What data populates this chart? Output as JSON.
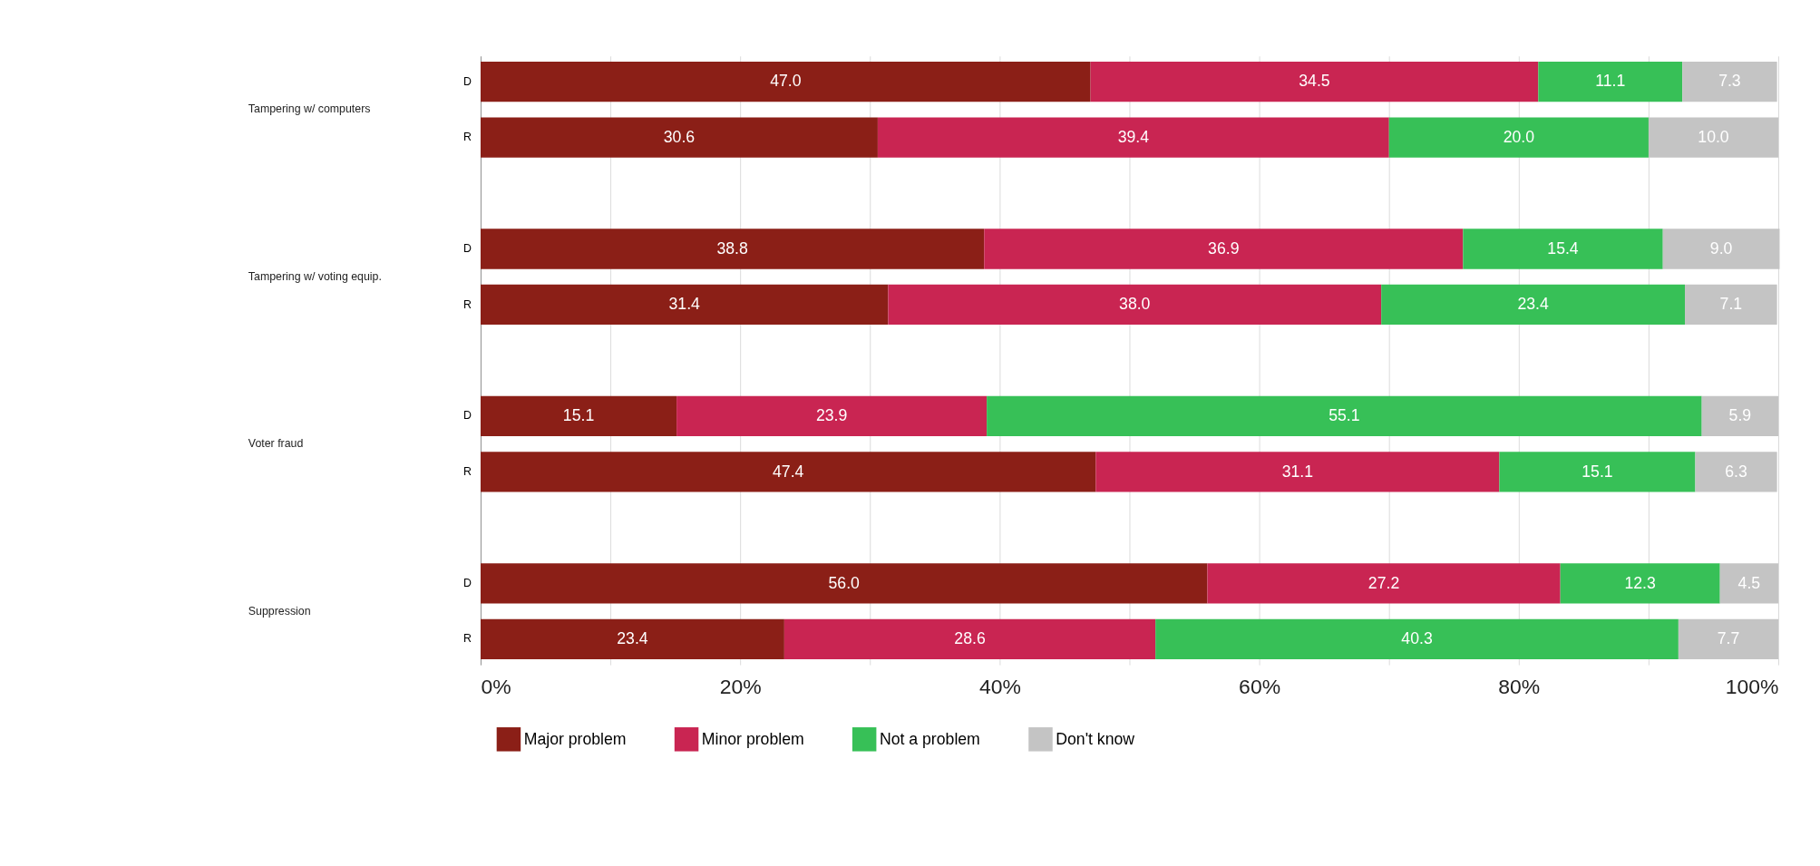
{
  "chart_data": {
    "type": "bar",
    "orientation": "horizontal",
    "stacked": true,
    "grid": true,
    "legend": "bottom",
    "categories": [
      "D",
      "R",
      "D",
      "R",
      "D",
      "R",
      "D",
      "R"
    ],
    "annotations": [
      "Tampering w/ computers",
      "Tampering w/ voting equip.",
      "Voter fraud",
      "Suppression"
    ],
    "xlim": [
      0,
      100
    ],
    "xticks": [
      {
        "value": 0,
        "label": "0%"
      },
      {
        "value": 10,
        "label": null
      },
      {
        "value": 20,
        "label": "20%"
      },
      {
        "value": 30,
        "label": null
      },
      {
        "value": 40,
        "label": "40%"
      },
      {
        "value": 50,
        "label": null
      },
      {
        "value": 60,
        "label": "60%"
      },
      {
        "value": 70,
        "label": null
      },
      {
        "value": 80,
        "label": "80%"
      },
      {
        "value": 90,
        "label": null
      },
      {
        "value": 100,
        "label": "100%"
      }
    ],
    "series": [
      {
        "name": "Major problem",
        "color": "#8b1f17",
        "values": [
          47.0,
          30.6,
          38.8,
          31.4,
          15.1,
          47.4,
          56.0,
          23.4
        ],
        "value_labels": [
          "47.0",
          "30.6",
          "38.8",
          "31.4",
          "15.1",
          "47.4",
          "56.0",
          "23.4"
        ]
      },
      {
        "name": "Minor problem",
        "color": "#c92552",
        "values": [
          34.5,
          39.4,
          36.9,
          38.0,
          23.9,
          31.1,
          27.2,
          28.6
        ],
        "value_labels": [
          "34.5",
          "39.4",
          "36.9",
          "38.0",
          "23.9",
          "31.1",
          "27.2",
          "28.6"
        ]
      },
      {
        "name": "Not a problem",
        "color": "#37c057",
        "values": [
          11.1,
          20.0,
          15.4,
          23.4,
          55.1,
          15.1,
          12.3,
          40.3
        ],
        "value_labels": [
          "11.1",
          "20.0",
          "15.4",
          "23.4",
          "55.1",
          "15.1",
          "12.3",
          "40.3"
        ]
      },
      {
        "name": "Don't know",
        "color": "#c4c4c4",
        "values": [
          7.3,
          10.0,
          9.0,
          7.1,
          5.9,
          6.3,
          4.5,
          7.7
        ],
        "value_labels": [
          "7.3",
          "10.0",
          "9.0",
          "7.1",
          "5.9",
          "6.3",
          "4.5",
          "7.7"
        ]
      }
    ]
  }
}
